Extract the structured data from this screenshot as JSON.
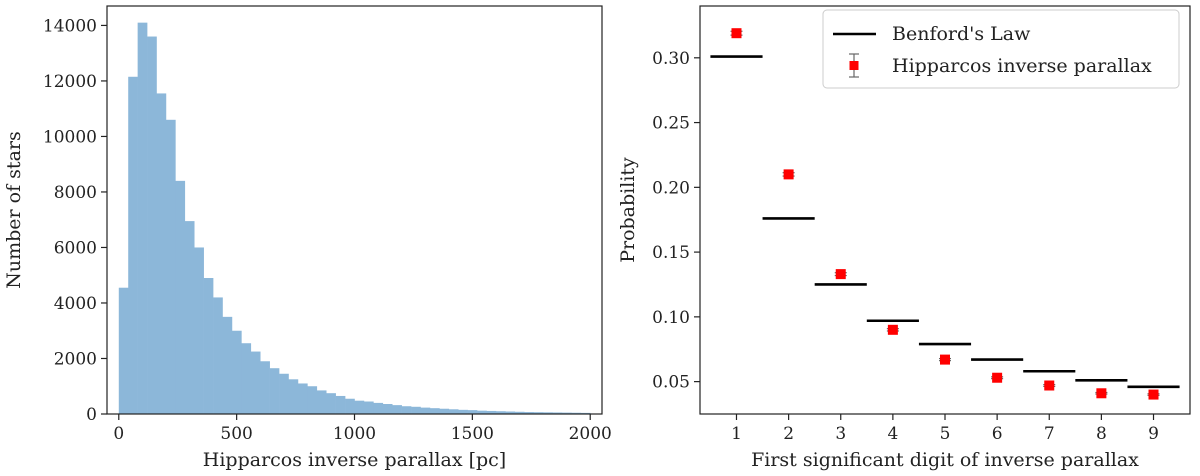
{
  "chart_data": [
    {
      "type": "bar",
      "title": "",
      "xlabel": "Hipparcos inverse parallax [pc]",
      "ylabel": "Number of stars",
      "xlim": [
        -50,
        2050
      ],
      "ylim": [
        0,
        14700
      ],
      "xticks": [
        0,
        500,
        1000,
        1500,
        2000
      ],
      "yticks": [
        0,
        2000,
        4000,
        6000,
        8000,
        10000,
        12000,
        14000
      ],
      "bin_width": 40,
      "bin_starts": [
        0,
        40,
        80,
        120,
        160,
        200,
        240,
        280,
        320,
        360,
        400,
        440,
        480,
        520,
        560,
        600,
        640,
        680,
        720,
        760,
        800,
        840,
        880,
        920,
        960,
        1000,
        1040,
        1080,
        1120,
        1160,
        1200,
        1240,
        1280,
        1320,
        1360,
        1400,
        1440,
        1480,
        1520,
        1560,
        1600,
        1640,
        1680,
        1720,
        1760,
        1800,
        1840,
        1880,
        1920,
        1960
      ],
      "values": [
        4550,
        12150,
        14100,
        13600,
        11550,
        10600,
        8400,
        6950,
        6000,
        4900,
        4200,
        3500,
        3000,
        2550,
        2250,
        1900,
        1650,
        1450,
        1250,
        1100,
        1000,
        850,
        750,
        650,
        550,
        480,
        450,
        400,
        360,
        320,
        280,
        260,
        230,
        210,
        190,
        170,
        150,
        140,
        120,
        110,
        100,
        90,
        80,
        70,
        65,
        60,
        55,
        50,
        45,
        40
      ],
      "color": "#8cb7d9"
    },
    {
      "type": "scatter",
      "title": "",
      "xlabel": "First significant digit of inverse parallax",
      "ylabel": "Probability",
      "xlim": [
        0.3,
        9.7
      ],
      "ylim": [
        0.025,
        0.34
      ],
      "xticks": [
        1,
        2,
        3,
        4,
        5,
        6,
        7,
        8,
        9
      ],
      "yticks": [
        "0.05",
        "0.10",
        "0.15",
        "0.20",
        "0.25",
        "0.30"
      ],
      "legend_position": "top-right",
      "series": [
        {
          "name": "Benford's Law",
          "style": "horizontal-segments",
          "color": "#000000",
          "x": [
            1,
            2,
            3,
            4,
            5,
            6,
            7,
            8,
            9
          ],
          "values": [
            0.301,
            0.176,
            0.125,
            0.097,
            0.079,
            0.067,
            0.058,
            0.051,
            0.046
          ]
        },
        {
          "name": "Hipparcos inverse parallax",
          "style": "square-markers-with-errorbars",
          "color": "#ff0000",
          "x": [
            1,
            2,
            3,
            4,
            5,
            6,
            7,
            8,
            9
          ],
          "values": [
            0.319,
            0.21,
            0.133,
            0.09,
            0.067,
            0.053,
            0.047,
            0.041,
            0.04
          ],
          "error": [
            0.0015,
            0.0013,
            0.0011,
            0.0009,
            0.0008,
            0.0007,
            0.0007,
            0.0006,
            0.0006
          ]
        }
      ]
    }
  ]
}
